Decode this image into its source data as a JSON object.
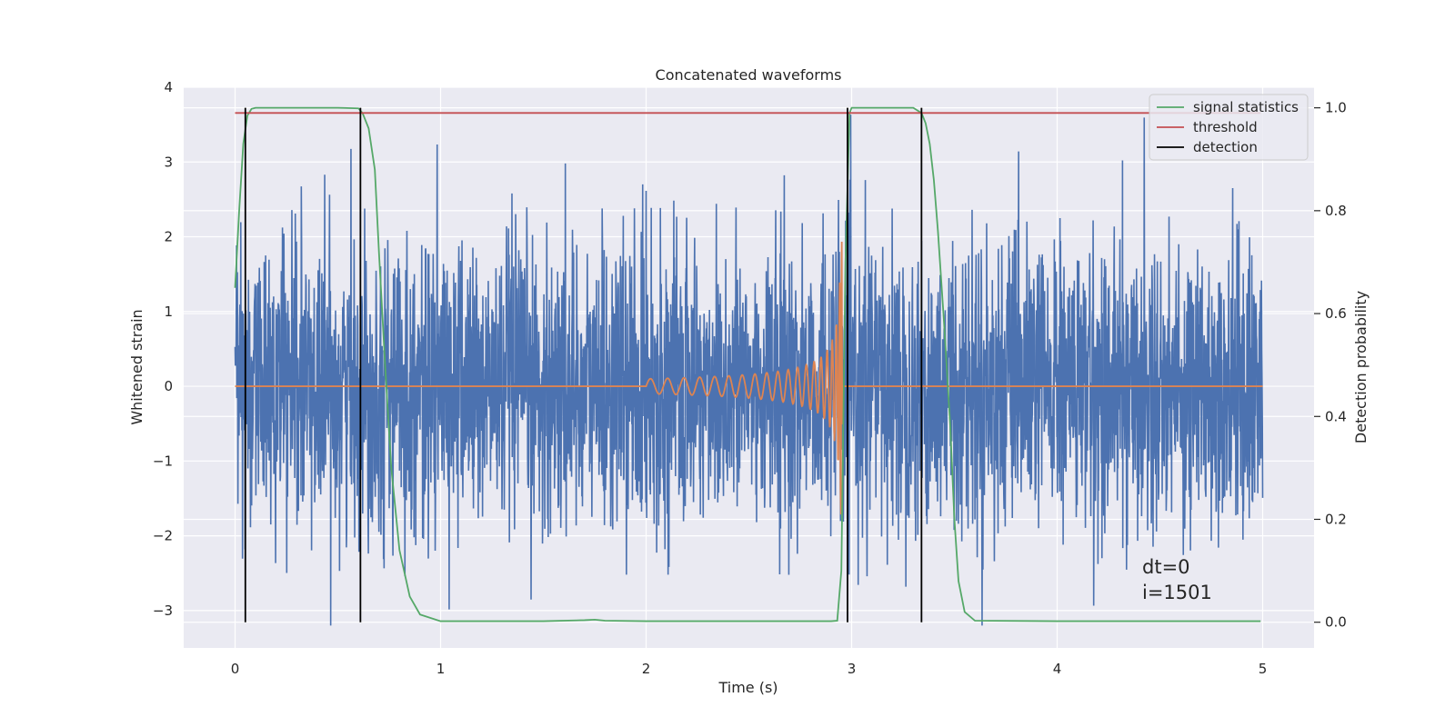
{
  "chart_data": {
    "type": "line",
    "title": "Concatenated waveforms",
    "xlabel": "Time (s)",
    "ylabel": "Whitened strain",
    "y2label": "Detection probability",
    "xlim": [
      -0.25,
      5.25
    ],
    "ylim": [
      -3.5,
      4.0
    ],
    "y2lim": [
      -0.05,
      1.04
    ],
    "x_ticks": [
      0,
      1,
      2,
      3,
      4,
      5
    ],
    "y_ticks": [
      -3,
      -2,
      -1,
      0,
      1,
      2,
      3,
      4
    ],
    "y2_ticks": [
      0.0,
      0.2,
      0.4,
      0.6,
      0.8,
      1.0
    ],
    "grid": true,
    "legend_position": "top-right",
    "colors": {
      "strain": "#4c72b0",
      "template": "#dd8452",
      "signal_statistics": "#55a868",
      "threshold": "#c44e52",
      "detection": "#000000",
      "plot_background": "#eaeaf2",
      "grid": "#ffffff"
    },
    "series": [
      {
        "name": "",
        "axis": "left",
        "kind": "noise",
        "description_values": {
          "x_range": [
            0,
            5
          ],
          "mean": 0.0,
          "typical_amplitude": 1.5,
          "max": 3.7,
          "min": -3.2
        }
      },
      {
        "name": "",
        "axis": "left",
        "kind": "chirp",
        "values": {
          "x_start": 2.0,
          "x_merger": 2.95,
          "amplitude_start": 0.1,
          "amplitude_peak": 2.7,
          "amplitude_min": -2.8
        }
      },
      {
        "name": "signal statistics",
        "axis": "right",
        "x": [
          0.0,
          0.02,
          0.04,
          0.06,
          0.08,
          0.1,
          0.5,
          0.6,
          0.62,
          0.65,
          0.68,
          0.7,
          0.73,
          0.76,
          0.8,
          0.85,
          0.9,
          1.0,
          1.5,
          1.7,
          1.75,
          1.8,
          2.0,
          2.5,
          2.9,
          2.93,
          2.95,
          2.97,
          2.99,
          3.0,
          3.1,
          3.3,
          3.34,
          3.36,
          3.38,
          3.4,
          3.42,
          3.45,
          3.48,
          3.5,
          3.52,
          3.55,
          3.6,
          4.0,
          4.5,
          4.99
        ],
        "y": [
          0.65,
          0.8,
          0.93,
          0.985,
          0.998,
          1.0,
          1.0,
          0.999,
          0.99,
          0.96,
          0.88,
          0.72,
          0.5,
          0.3,
          0.14,
          0.05,
          0.015,
          0.002,
          0.002,
          0.004,
          0.005,
          0.003,
          0.002,
          0.002,
          0.002,
          0.003,
          0.1,
          0.7,
          0.99,
          1.0,
          1.0,
          1.0,
          0.99,
          0.97,
          0.93,
          0.86,
          0.76,
          0.58,
          0.38,
          0.2,
          0.08,
          0.02,
          0.003,
          0.002,
          0.002,
          0.002
        ]
      },
      {
        "name": "threshold",
        "axis": "right",
        "x": [
          0.0,
          4.99
        ],
        "y": [
          0.99,
          0.99
        ]
      },
      {
        "name": "detection",
        "axis": "right",
        "kind": "vlines",
        "x": [
          0.05,
          0.61,
          2.98,
          3.34
        ],
        "y_range": [
          0.0,
          1.0
        ]
      }
    ],
    "legend": [
      "signal statistics",
      "threshold",
      "detection"
    ],
    "annotations": [
      "dt=0",
      "i=1501"
    ]
  }
}
